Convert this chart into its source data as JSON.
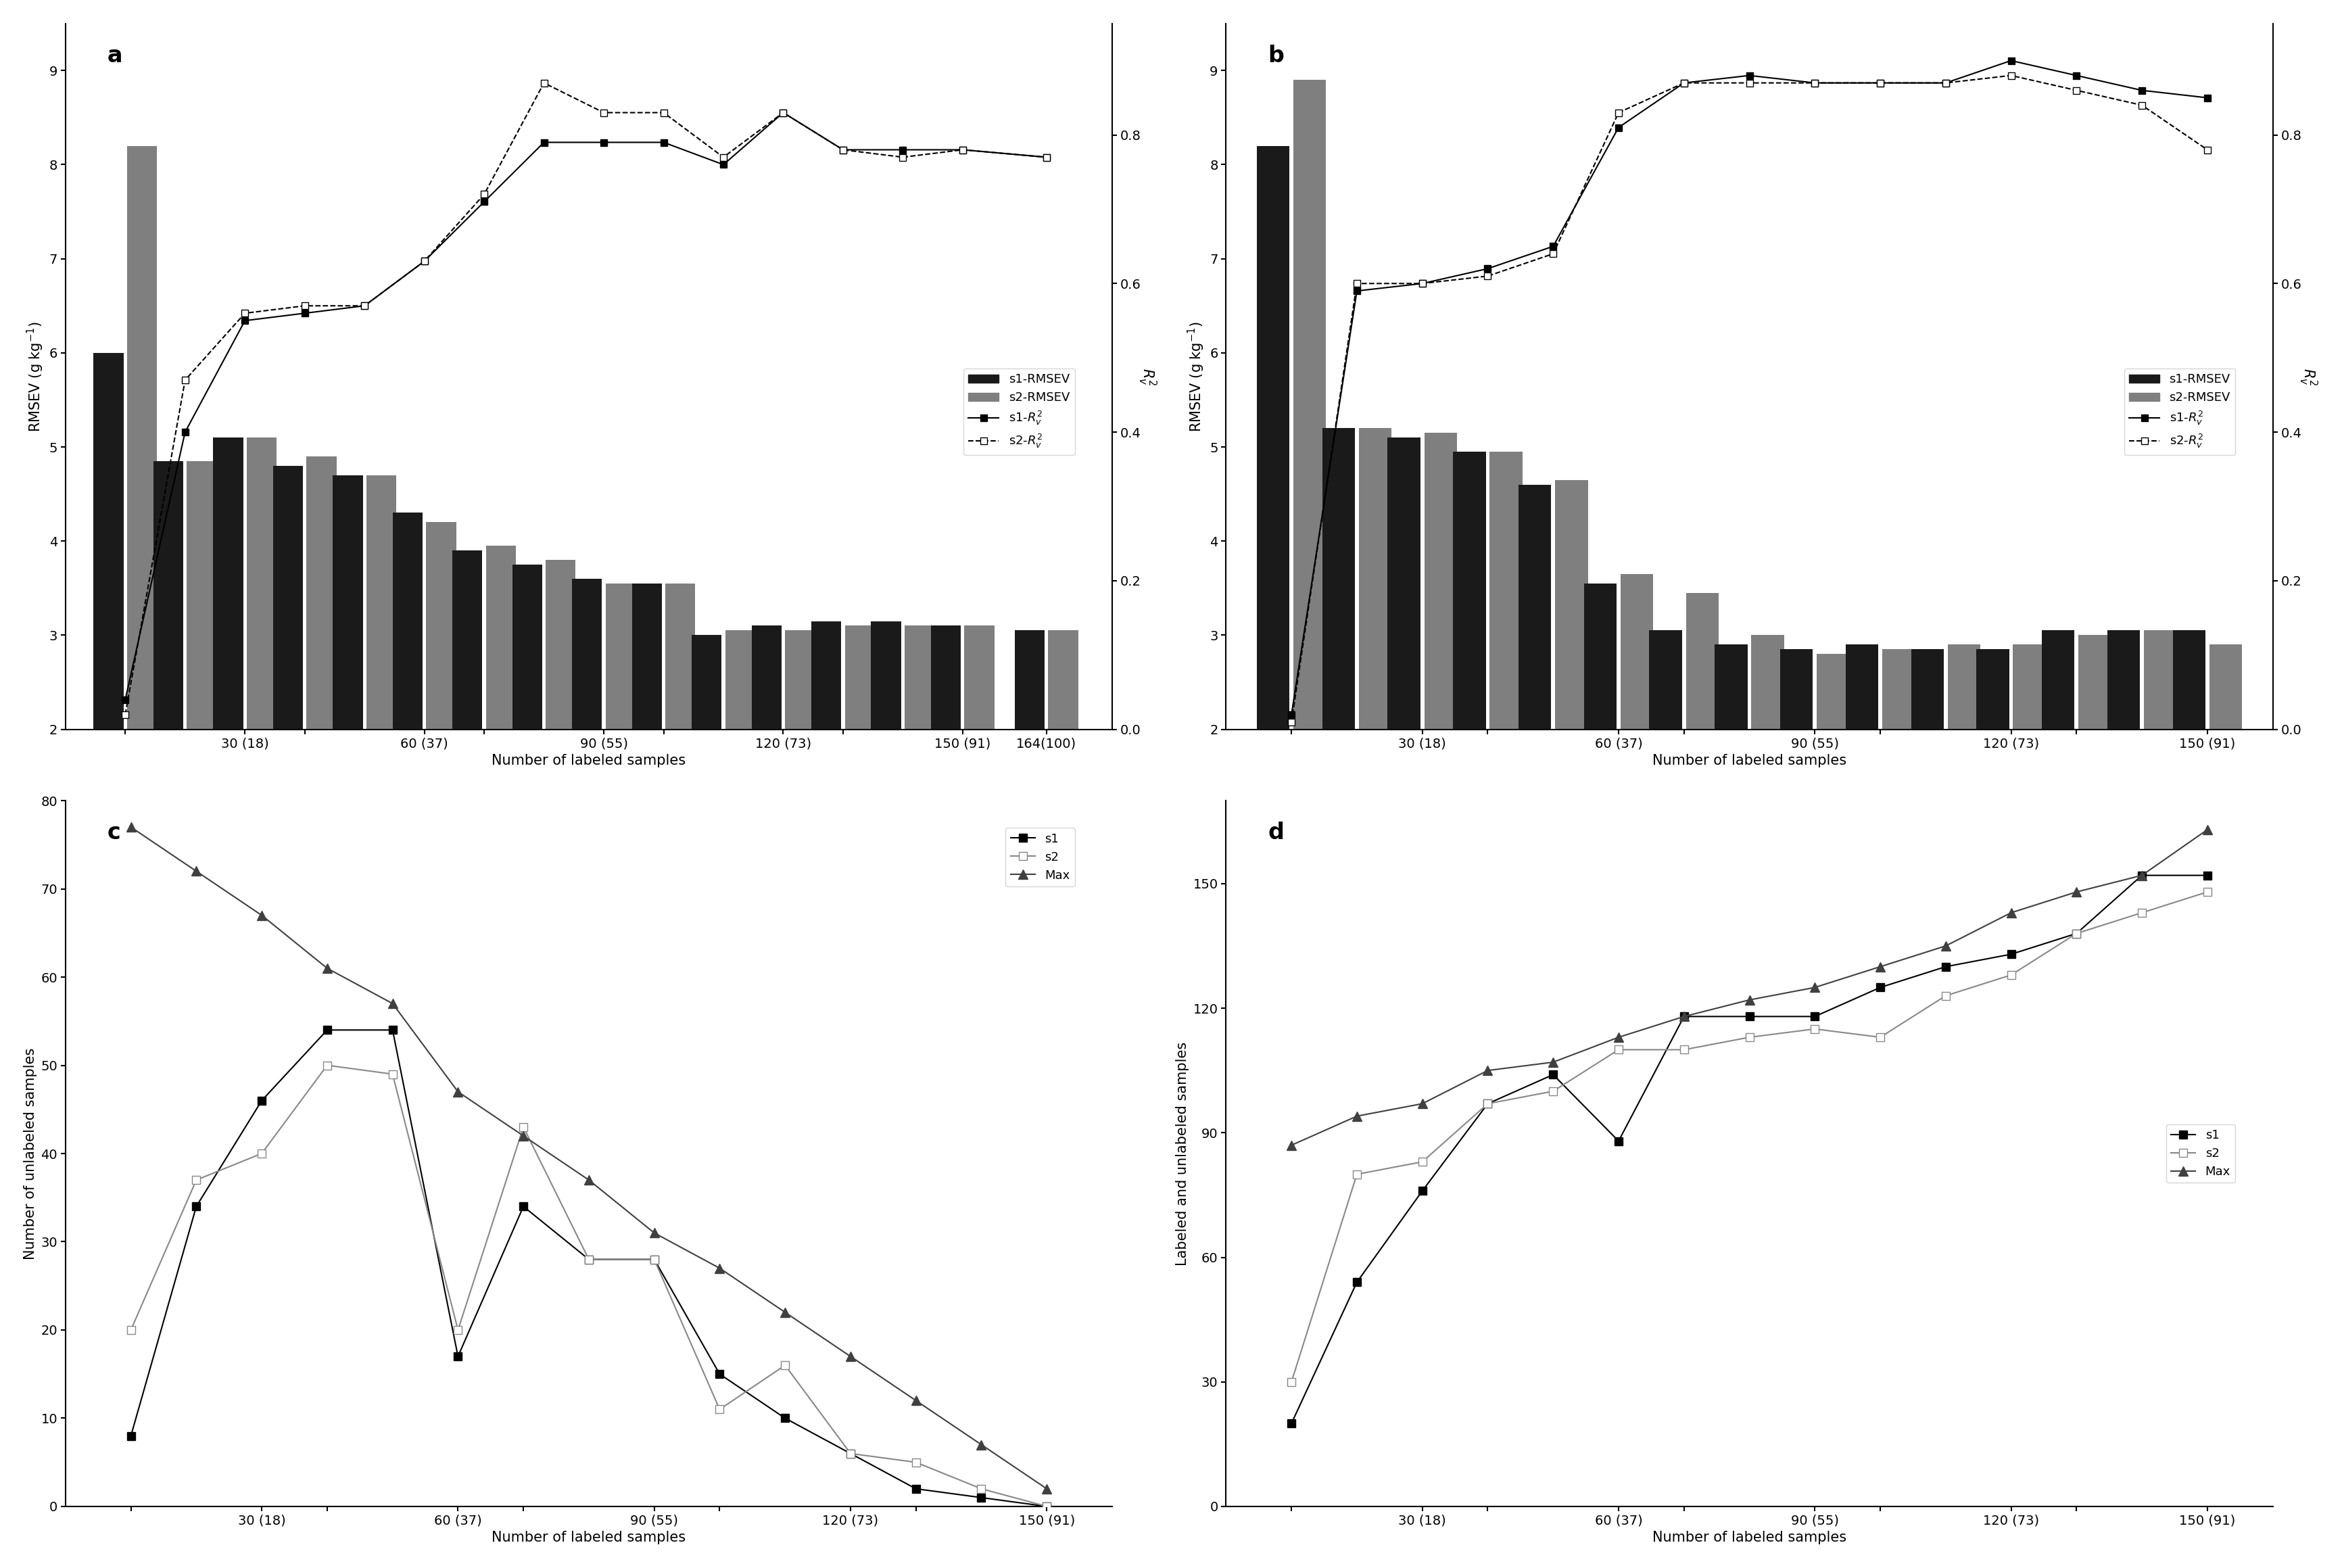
{
  "panel_a": {
    "bar_x": [
      10,
      20,
      30,
      40,
      50,
      60,
      70,
      80,
      90,
      100,
      110,
      120,
      130,
      140,
      150,
      164
    ],
    "s1_rmsev": [
      6.0,
      4.85,
      5.1,
      4.8,
      4.7,
      4.3,
      3.9,
      3.75,
      3.6,
      3.55,
      3.0,
      3.1,
      3.15,
      3.15,
      3.1,
      3.05
    ],
    "s2_rmsev": [
      8.2,
      4.85,
      5.1,
      4.9,
      4.7,
      4.2,
      3.95,
      3.8,
      3.55,
      3.55,
      3.05,
      3.05,
      3.1,
      3.1,
      3.1,
      3.05
    ],
    "s1_r2": [
      0.04,
      0.4,
      0.55,
      0.56,
      0.57,
      0.63,
      0.71,
      0.79,
      0.79,
      0.79,
      0.76,
      0.83,
      0.78,
      0.78,
      0.78,
      0.77
    ],
    "s2_r2": [
      0.02,
      0.47,
      0.56,
      0.57,
      0.57,
      0.63,
      0.72,
      0.87,
      0.83,
      0.83,
      0.77,
      0.83,
      0.78,
      0.77,
      0.78,
      0.77
    ],
    "xtick_positions": [
      10,
      30,
      40,
      60,
      70,
      90,
      100,
      120,
      130,
      150,
      164
    ],
    "xtick_labels": [
      "",
      "30 (18)",
      "",
      "60 (37)",
      "",
      "90 (55)",
      "",
      "120 (73)",
      "",
      "150 (91)",
      "164(100)"
    ],
    "ylabel_left": "RMSEV (g kg$^{-1}$)",
    "ylabel_right": "$R^2_v$",
    "ylim_left": [
      2,
      9.5
    ],
    "yticks_left": [
      2,
      3,
      4,
      5,
      6,
      7,
      8,
      9
    ],
    "ylim_right": [
      0.0,
      0.95
    ],
    "yticks_right": [
      0.0,
      0.2,
      0.4,
      0.6,
      0.8
    ],
    "xlim": [
      0,
      175
    ],
    "title": "a"
  },
  "panel_b": {
    "bar_x": [
      10,
      20,
      30,
      40,
      50,
      60,
      70,
      80,
      90,
      100,
      110,
      120,
      130,
      140,
      150
    ],
    "s1_rmsev": [
      8.2,
      5.2,
      5.1,
      4.95,
      4.6,
      3.55,
      3.05,
      2.9,
      2.85,
      2.9,
      2.85,
      2.85,
      3.05,
      3.05,
      3.05
    ],
    "s2_rmsev": [
      8.9,
      5.2,
      5.15,
      4.95,
      4.65,
      3.65,
      3.45,
      3.0,
      2.8,
      2.85,
      2.9,
      2.9,
      3.0,
      3.05,
      2.9
    ],
    "s1_r2": [
      0.02,
      0.59,
      0.6,
      0.62,
      0.65,
      0.81,
      0.87,
      0.88,
      0.87,
      0.87,
      0.87,
      0.9,
      0.88,
      0.86,
      0.85
    ],
    "s2_r2": [
      0.01,
      0.6,
      0.6,
      0.61,
      0.64,
      0.83,
      0.87,
      0.87,
      0.87,
      0.87,
      0.87,
      0.88,
      0.86,
      0.84,
      0.78
    ],
    "xtick_positions": [
      10,
      30,
      40,
      60,
      70,
      90,
      100,
      120,
      130,
      150
    ],
    "xtick_labels": [
      "",
      "30 (18)",
      "",
      "60 (37)",
      "",
      "90 (55)",
      "",
      "120 (73)",
      "",
      "150 (91)"
    ],
    "ylabel_left": "RMSEV (g kg$^{-1}$)",
    "ylabel_right": "$R^2_v$",
    "ylim_left": [
      2,
      9.5
    ],
    "yticks_left": [
      2,
      3,
      4,
      5,
      6,
      7,
      8,
      9
    ],
    "ylim_right": [
      0.0,
      0.95
    ],
    "yticks_right": [
      0.0,
      0.2,
      0.4,
      0.6,
      0.8
    ],
    "xlim": [
      0,
      160
    ],
    "title": "b"
  },
  "panel_c": {
    "x": [
      10,
      20,
      30,
      40,
      50,
      60,
      70,
      80,
      90,
      100,
      110,
      120,
      130,
      140,
      150
    ],
    "s1": [
      8,
      34,
      46,
      54,
      54,
      17,
      34,
      28,
      28,
      15,
      10,
      6,
      2,
      1,
      0
    ],
    "s2": [
      20,
      37,
      40,
      50,
      49,
      20,
      43,
      28,
      28,
      11,
      16,
      6,
      5,
      2,
      0
    ],
    "max": [
      77,
      72,
      67,
      61,
      57,
      47,
      42,
      37,
      31,
      27,
      22,
      17,
      12,
      7,
      2
    ],
    "xtick_positions": [
      10,
      30,
      40,
      60,
      70,
      90,
      100,
      120,
      130,
      150
    ],
    "xtick_labels": [
      "",
      "30 (18)",
      "",
      "60 (37)",
      "",
      "90 (55)",
      "",
      "120 (73)",
      "",
      "150 (91)"
    ],
    "ylabel": "Number of unlabeled samples",
    "xlabel": "Number of labeled samples",
    "ylim": [
      0,
      80
    ],
    "yticks": [
      0,
      10,
      20,
      30,
      40,
      50,
      60,
      70,
      80
    ],
    "xlim": [
      0,
      160
    ],
    "title": "c"
  },
  "panel_d": {
    "x": [
      10,
      20,
      30,
      40,
      50,
      60,
      70,
      80,
      90,
      100,
      110,
      120,
      130,
      140,
      150
    ],
    "s1": [
      20,
      54,
      76,
      97,
      104,
      88,
      118,
      118,
      118,
      125,
      130,
      133,
      138,
      152,
      152
    ],
    "s2": [
      30,
      80,
      83,
      97,
      100,
      110,
      110,
      113,
      115,
      113,
      123,
      128,
      138,
      143,
      148
    ],
    "max": [
      87,
      94,
      97,
      105,
      107,
      113,
      118,
      122,
      125,
      130,
      135,
      143,
      148,
      152,
      163
    ],
    "xtick_positions": [
      10,
      30,
      40,
      60,
      70,
      90,
      100,
      120,
      130,
      150
    ],
    "xtick_labels": [
      "",
      "30 (18)",
      "",
      "60 (37)",
      "",
      "90 (55)",
      "",
      "120 (73)",
      "",
      "150 (91)"
    ],
    "ylabel": "Labeled and unlabeled samples",
    "xlabel": "Number of labeled samples",
    "ylim": [
      0,
      170
    ],
    "yticks": [
      0,
      30,
      60,
      90,
      120,
      150
    ],
    "xlim": [
      0,
      160
    ],
    "title": "d"
  }
}
